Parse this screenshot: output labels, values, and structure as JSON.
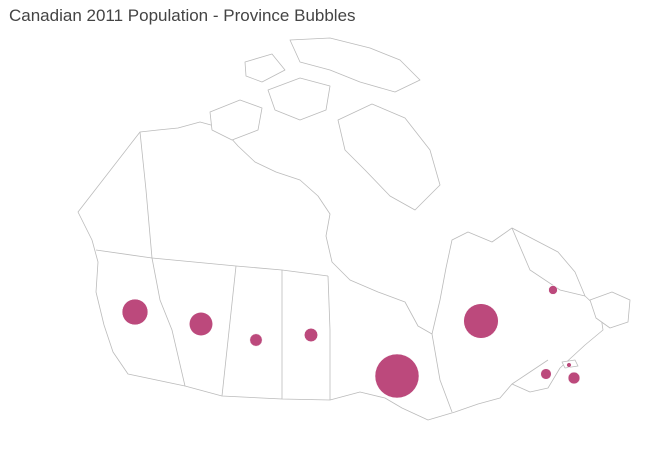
{
  "title": "Canadian 2011 Population - Province Bubbles",
  "bubble_color": "#b5356e",
  "chart_data": {
    "type": "bubble-map",
    "title": "Canadian 2011 Population - Province Bubbles",
    "size_encoding": "population (area-proportional)",
    "bubbles": [
      {
        "id": "bc",
        "value": 4400057
      },
      {
        "id": "ab",
        "value": 3645257
      },
      {
        "id": "sk",
        "value": 1033381
      },
      {
        "id": "mb",
        "value": 1208268
      },
      {
        "id": "on",
        "value": 12851821
      },
      {
        "id": "qc",
        "value": 7903001
      },
      {
        "id": "nl",
        "value": 514536
      },
      {
        "id": "nb",
        "value": 751171
      },
      {
        "id": "pe",
        "value": 140204
      },
      {
        "id": "ns",
        "value": 921727
      }
    ]
  }
}
